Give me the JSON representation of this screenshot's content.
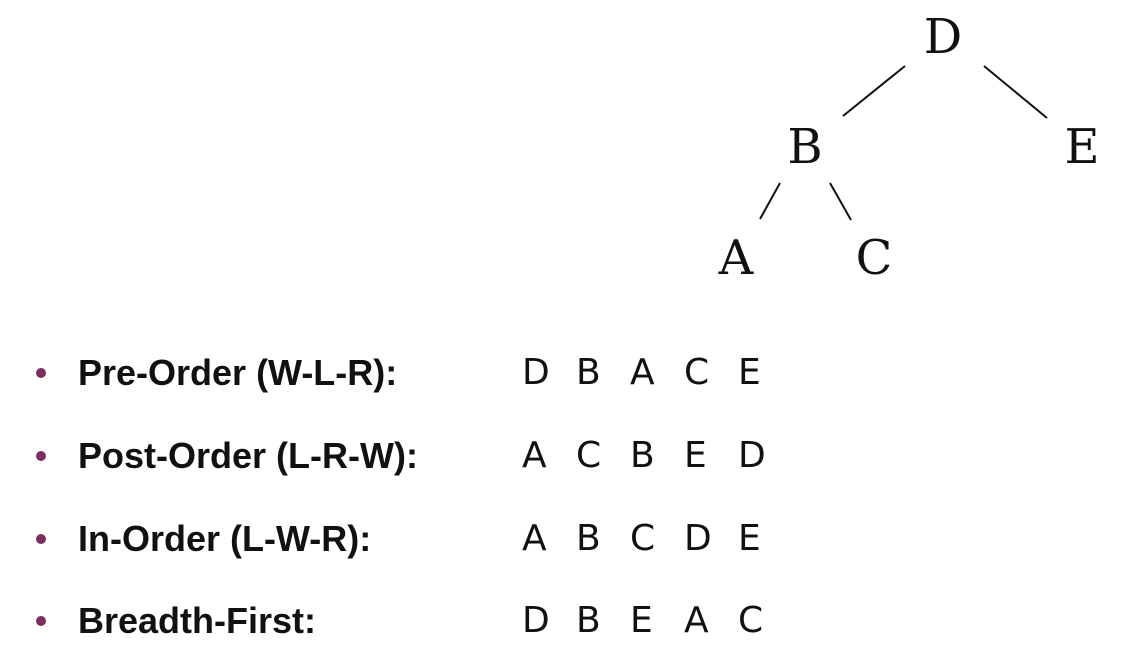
{
  "tree": {
    "nodes": [
      {
        "id": "D",
        "label": "D"
      },
      {
        "id": "B",
        "label": "B"
      },
      {
        "id": "E",
        "label": "E"
      },
      {
        "id": "A",
        "label": "A"
      },
      {
        "id": "C",
        "label": "C"
      }
    ],
    "edges": [
      {
        "from": "D",
        "to": "B"
      },
      {
        "from": "D",
        "to": "E"
      },
      {
        "from": "B",
        "to": "A"
      },
      {
        "from": "B",
        "to": "C"
      }
    ]
  },
  "traversals": [
    {
      "label": "Pre-Order (W-L-R):",
      "sequence": [
        "D",
        "B",
        "A",
        "C",
        "E"
      ]
    },
    {
      "label": "Post-Order (L-R-W):",
      "sequence": [
        "A",
        "C",
        "B",
        "E",
        "D"
      ]
    },
    {
      "label": "In-Order (L-W-R):",
      "sequence": [
        "A",
        "B",
        "C",
        "D",
        "E"
      ]
    },
    {
      "label": "Breadth-First:",
      "sequence": [
        "D",
        "B",
        "E",
        "A",
        "C"
      ]
    }
  ]
}
